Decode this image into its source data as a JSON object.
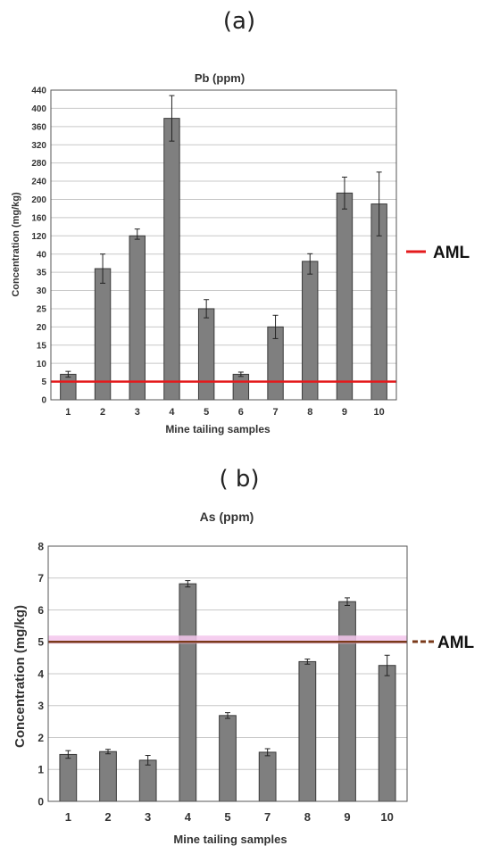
{
  "panels": {
    "a_label": "(a)",
    "b_label": "( b)"
  },
  "chart_data": [
    {
      "type": "bar",
      "title": "Pb (ppm)",
      "xlabel": "Mine tailing samples",
      "ylabel": "Concentration (mg/kg)",
      "y_ticks": [
        "0",
        "5",
        "10",
        "15",
        "20",
        "25",
        "30",
        "35",
        "40",
        "120",
        "160",
        "200",
        "240",
        "280",
        "320",
        "360",
        "400",
        "440"
      ],
      "y_scale": "broken: 0-40 linear in steps of 5, then 120-440 in steps of 40 (each tick equally spaced)",
      "categories": [
        "1",
        "2",
        "3",
        "4",
        "5",
        "6",
        "7",
        "8",
        "9",
        "10"
      ],
      "values": [
        7,
        36,
        120,
        378,
        25,
        7,
        20,
        38,
        214,
        190
      ],
      "errors": [
        0.8,
        4,
        15,
        50,
        2.5,
        0.6,
        3.2,
        3.5,
        35,
        70
      ],
      "reference_line": {
        "name": "AML",
        "value": 5,
        "color": "#e41a1c"
      },
      "legend": {
        "label": "AML",
        "position": "right"
      },
      "bar_color": "#7f7f7f",
      "grid": true
    },
    {
      "type": "bar",
      "title": "As (ppm)",
      "xlabel": "Mine tailing samples",
      "ylabel": "Concentration (mg/kg)",
      "ylim": [
        0,
        8
      ],
      "y_ticks": [
        "0",
        "1",
        "2",
        "3",
        "4",
        "5",
        "6",
        "7",
        "8"
      ],
      "categories": [
        "1",
        "2",
        "3",
        "4",
        "5",
        "7",
        "8",
        "9",
        "10"
      ],
      "values": [
        1.47,
        1.56,
        1.29,
        6.82,
        2.69,
        1.54,
        4.38,
        6.26,
        4.26
      ],
      "errors": [
        0.12,
        0.07,
        0.15,
        0.1,
        0.09,
        0.11,
        0.08,
        0.12,
        0.32
      ],
      "reference_line": {
        "name": "AML",
        "value": 5,
        "color": "#7a3a1a"
      },
      "legend": {
        "label": "AML",
        "position": "right"
      },
      "bar_color": "#7f7f7f",
      "grid": true
    }
  ]
}
